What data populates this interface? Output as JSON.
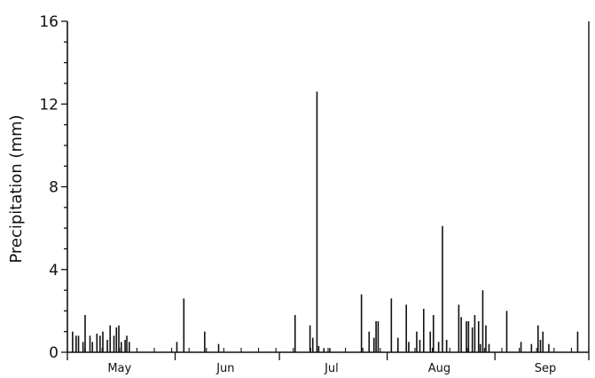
{
  "chart_data": {
    "type": "bar",
    "title": "",
    "xlabel": "",
    "ylabel": "Precipitation (mm)",
    "ylim": [
      0,
      16
    ],
    "yticks": [
      "0",
      "4",
      "8",
      "12",
      "16"
    ],
    "x_range": [
      0,
      150
    ],
    "months": [
      {
        "label": "May",
        "center": 15
      },
      {
        "label": "Jun",
        "center": 45.5
      },
      {
        "label": "Jul",
        "center": 76
      },
      {
        "label": "Aug",
        "center": 107
      },
      {
        "label": "Sep",
        "center": 137.5
      }
    ],
    "month_boundaries": [
      0,
      31,
      61,
      92,
      123,
      150
    ],
    "x_minor_tick_step": 5,
    "grid": false,
    "series": [
      {
        "x": [
          1.5,
          2.5,
          3.2,
          4.5,
          5.1,
          6.5,
          7.2,
          8.5,
          9.4,
          10.2,
          11.5,
          12.3,
          13.4,
          14.1,
          14.8,
          15.5,
          16.6,
          17.1,
          17.8,
          31.5,
          33.5,
          39.5,
          43.5,
          65.5,
          69.8,
          70.6,
          71.8,
          72.3,
          73.8,
          75.5,
          84.6,
          86.8,
          88.2,
          88.8,
          89.4,
          93.2,
          95.1,
          97.5,
          98.2,
          100.5,
          101.4,
          102.5,
          104.4,
          105.3,
          106.8,
          107.9,
          109.1,
          112.6,
          113.3,
          114.8,
          115.4,
          116.5,
          117.2,
          118.3,
          118.8,
          119.5,
          120.4,
          121.3,
          126.4,
          130.5,
          133.5,
          135.4,
          136.1,
          136.8,
          138.5,
          146.8
        ],
        "values": [
          1.0,
          0.8,
          0.8,
          0.5,
          1.8,
          0.8,
          0.5,
          0.9,
          0.8,
          1.0,
          0.6,
          1.3,
          0.8,
          1.2,
          1.3,
          0.5,
          0.6,
          0.8,
          0.5,
          0.5,
          2.6,
          1.0,
          0.4,
          1.8,
          1.3,
          0.7,
          12.6,
          0.3,
          0.2,
          0.2,
          2.8,
          1.0,
          0.7,
          1.5,
          1.5,
          2.6,
          0.7,
          2.3,
          0.5,
          1.0,
          0.6,
          2.1,
          1.0,
          1.8,
          0.5,
          6.1,
          0.6,
          2.3,
          1.7,
          1.5,
          1.5,
          1.2,
          1.8,
          1.5,
          0.4,
          3.0,
          1.3,
          0.4,
          2.0,
          0.5,
          0.4,
          1.3,
          0.6,
          1.0,
          0.4,
          1.0
        ]
      }
    ]
  }
}
